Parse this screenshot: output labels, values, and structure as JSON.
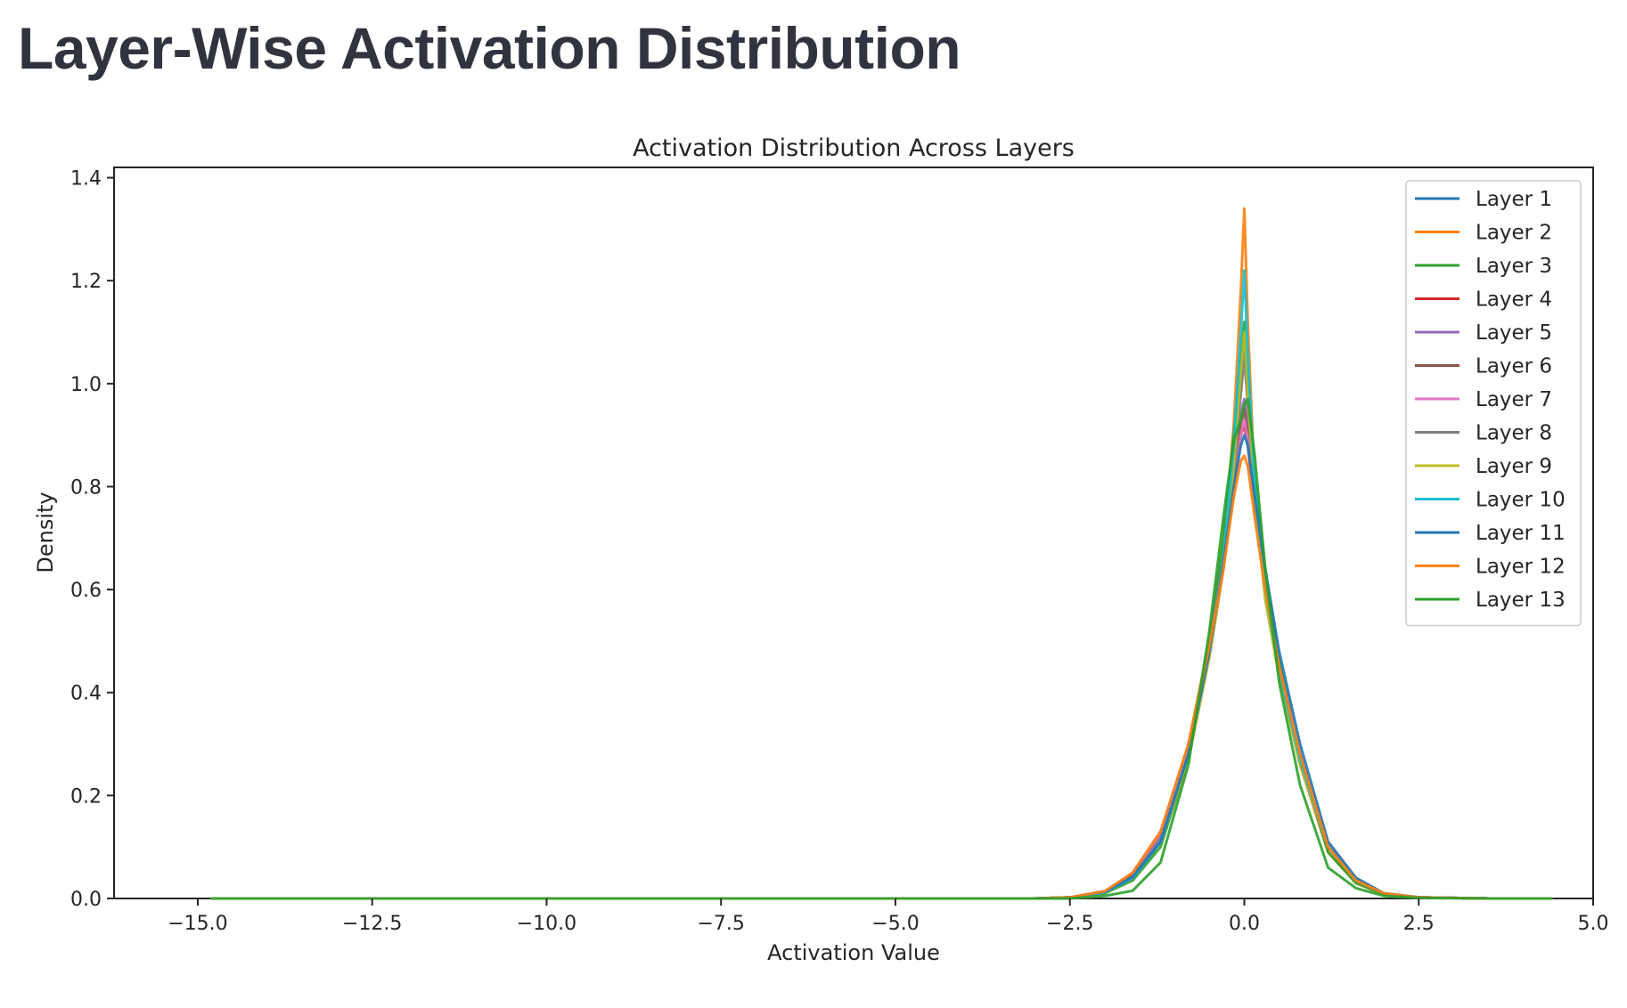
{
  "page": {
    "heading": "Layer-Wise Activation Distribution"
  },
  "chart_data": {
    "type": "line",
    "title": "Activation Distribution Across Layers",
    "xlabel": "Activation Value",
    "ylabel": "Density",
    "xlim": [
      -16.2,
      5.0
    ],
    "ylim": [
      0.0,
      1.42
    ],
    "xticks": [
      -15.0,
      -12.5,
      -10.0,
      -7.5,
      -5.0,
      -2.5,
      0.0,
      2.5,
      5.0
    ],
    "xtick_labels": [
      "−15.0",
      "−12.5",
      "−10.0",
      "−7.5",
      "−5.0",
      "−2.5",
      "0.0",
      "2.5",
      "5.0"
    ],
    "yticks": [
      0.0,
      0.2,
      0.4,
      0.6,
      0.8,
      1.0,
      1.2,
      1.4
    ],
    "ytick_labels": [
      "0.0",
      "0.2",
      "0.4",
      "0.6",
      "0.8",
      "1.0",
      "1.2",
      "1.4"
    ],
    "grid": false,
    "legend_position": "top-right",
    "x": [
      -14.8,
      -12.5,
      -10.0,
      -7.5,
      -5.0,
      -3.0,
      -2.5,
      -2.0,
      -1.6,
      -1.2,
      -0.8,
      -0.5,
      -0.3,
      -0.15,
      -0.05,
      0.0,
      0.05,
      0.15,
      0.3,
      0.5,
      0.8,
      1.2,
      1.6,
      2.0,
      2.5,
      3.5,
      4.4
    ],
    "series": [
      {
        "name": "Layer 1",
        "color": "#1f77b4",
        "values": [
          0.0,
          0.0,
          0.0,
          0.0,
          0.0,
          0.0,
          0.002,
          0.012,
          0.04,
          0.11,
          0.28,
          0.48,
          0.65,
          0.85,
          1.0,
          1.08,
          0.98,
          0.8,
          0.62,
          0.46,
          0.28,
          0.1,
          0.035,
          0.01,
          0.002,
          0.0,
          0.0
        ]
      },
      {
        "name": "Layer 2",
        "color": "#ff7f0e",
        "values": [
          0.0,
          0.0,
          0.0,
          0.0,
          0.0,
          0.0,
          0.002,
          0.013,
          0.045,
          0.12,
          0.3,
          0.5,
          0.68,
          0.92,
          1.18,
          1.34,
          1.12,
          0.8,
          0.6,
          0.44,
          0.26,
          0.09,
          0.03,
          0.008,
          0.002,
          0.0,
          0.0
        ]
      },
      {
        "name": "Layer 3",
        "color": "#2ca02c",
        "values": [
          0.0,
          0.0,
          0.0,
          0.0,
          0.0,
          0.0,
          0.002,
          0.01,
          0.035,
          0.1,
          0.27,
          0.5,
          0.7,
          0.9,
          1.05,
          1.12,
          1.0,
          0.82,
          0.64,
          0.46,
          0.27,
          0.09,
          0.03,
          0.008,
          0.002,
          0.0,
          0.0
        ]
      },
      {
        "name": "Layer 4",
        "color": "#d62728",
        "values": [
          0.0,
          0.0,
          0.0,
          0.0,
          0.0,
          0.0,
          0.002,
          0.014,
          0.045,
          0.11,
          0.27,
          0.47,
          0.64,
          0.8,
          0.9,
          0.92,
          0.88,
          0.76,
          0.6,
          0.44,
          0.27,
          0.1,
          0.035,
          0.01,
          0.002,
          0.0,
          0.0
        ]
      },
      {
        "name": "Layer 5",
        "color": "#9467bd",
        "values": [
          0.0,
          0.0,
          0.0,
          0.0,
          0.0,
          0.0,
          0.002,
          0.012,
          0.04,
          0.12,
          0.29,
          0.49,
          0.66,
          0.83,
          0.94,
          0.97,
          0.92,
          0.78,
          0.61,
          0.44,
          0.26,
          0.1,
          0.035,
          0.01,
          0.002,
          0.0,
          0.0
        ]
      },
      {
        "name": "Layer 6",
        "color": "#8c564b",
        "values": [
          0.0,
          0.0,
          0.0,
          0.0,
          0.0,
          0.0,
          0.002,
          0.012,
          0.04,
          0.11,
          0.28,
          0.48,
          0.65,
          0.82,
          0.92,
          0.95,
          0.9,
          0.77,
          0.6,
          0.44,
          0.27,
          0.1,
          0.035,
          0.01,
          0.002,
          0.0,
          0.0
        ]
      },
      {
        "name": "Layer 7",
        "color": "#e377c2",
        "values": [
          0.0,
          0.0,
          0.0,
          0.0,
          0.0,
          0.0,
          0.002,
          0.014,
          0.05,
          0.13,
          0.29,
          0.48,
          0.64,
          0.8,
          0.9,
          0.93,
          0.89,
          0.76,
          0.6,
          0.45,
          0.28,
          0.11,
          0.04,
          0.01,
          0.002,
          0.0,
          0.0
        ]
      },
      {
        "name": "Layer 8",
        "color": "#7f7f7f",
        "values": [
          0.0,
          0.0,
          0.0,
          0.0,
          0.0,
          0.0,
          0.002,
          0.012,
          0.04,
          0.11,
          0.28,
          0.47,
          0.64,
          0.82,
          0.98,
          1.05,
          0.96,
          0.78,
          0.6,
          0.44,
          0.27,
          0.1,
          0.035,
          0.01,
          0.002,
          0.0,
          0.0
        ]
      },
      {
        "name": "Layer 9",
        "color": "#bcbd22",
        "values": [
          0.0,
          0.0,
          0.0,
          0.0,
          0.0,
          0.0,
          0.002,
          0.012,
          0.042,
          0.11,
          0.27,
          0.47,
          0.64,
          0.84,
          1.02,
          1.1,
          0.98,
          0.78,
          0.58,
          0.43,
          0.26,
          0.1,
          0.035,
          0.01,
          0.002,
          0.0,
          0.0
        ]
      },
      {
        "name": "Layer 10",
        "color": "#17becf",
        "values": [
          0.0,
          0.0,
          0.0,
          0.0,
          0.0,
          0.0,
          0.002,
          0.012,
          0.04,
          0.11,
          0.28,
          0.48,
          0.66,
          0.88,
          1.1,
          1.22,
          1.06,
          0.8,
          0.6,
          0.44,
          0.27,
          0.1,
          0.035,
          0.01,
          0.002,
          0.0,
          0.0
        ]
      },
      {
        "name": "Layer 11",
        "color": "#1f77b4",
        "values": [
          0.0,
          0.0,
          0.0,
          0.0,
          0.0,
          0.0,
          0.002,
          0.013,
          0.042,
          0.11,
          0.28,
          0.48,
          0.65,
          0.8,
          0.88,
          0.9,
          0.88,
          0.78,
          0.64,
          0.48,
          0.3,
          0.11,
          0.04,
          0.01,
          0.002,
          0.0,
          0.0
        ]
      },
      {
        "name": "Layer 12",
        "color": "#ff7f0e",
        "values": [
          0.0,
          0.0,
          0.0,
          0.0,
          0.0,
          0.0,
          0.002,
          0.014,
          0.05,
          0.13,
          0.3,
          0.49,
          0.64,
          0.78,
          0.85,
          0.86,
          0.84,
          0.74,
          0.6,
          0.45,
          0.28,
          0.1,
          0.035,
          0.01,
          0.002,
          0.0,
          0.0
        ]
      },
      {
        "name": "Layer 13",
        "color": "#2ca02c",
        "values": [
          0.0,
          0.0,
          0.0,
          0.0,
          0.0,
          0.0,
          0.0,
          0.005,
          0.015,
          0.07,
          0.26,
          0.52,
          0.74,
          0.89,
          0.93,
          0.96,
          0.97,
          0.86,
          0.64,
          0.42,
          0.22,
          0.06,
          0.02,
          0.005,
          0.001,
          0.0,
          0.0
        ]
      }
    ]
  }
}
